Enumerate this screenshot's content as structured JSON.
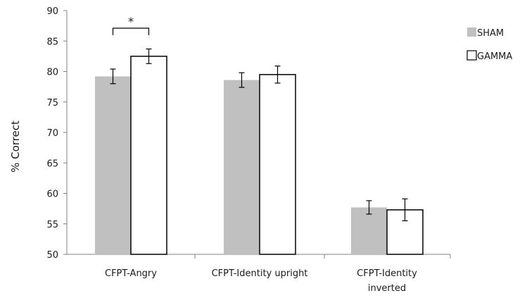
{
  "chart_data": {
    "type": "bar",
    "title": "",
    "xlabel": "",
    "ylabel": "% Correct",
    "ylim": [
      50,
      90
    ],
    "yticks": [
      50,
      55,
      60,
      65,
      70,
      75,
      80,
      85,
      90
    ],
    "grid": false,
    "legend_position": "top-right",
    "categories": [
      [
        "CFPT-Angry"
      ],
      [
        "CFPT-Identity upright"
      ],
      [
        "CFPT-Identity",
        "inverted"
      ]
    ],
    "series": [
      {
        "name": "SHAM",
        "values": [
          79.2,
          78.6,
          57.7
        ],
        "errors": [
          1.2,
          1.2,
          1.1
        ],
        "color": "#c0c0c0"
      },
      {
        "name": "GAMMA",
        "values": [
          82.5,
          79.5,
          57.3
        ],
        "errors": [
          1.2,
          1.4,
          1.8
        ],
        "color": "#ffffff"
      }
    ],
    "annotations": [
      {
        "text": "*",
        "category_index": 0
      }
    ]
  }
}
